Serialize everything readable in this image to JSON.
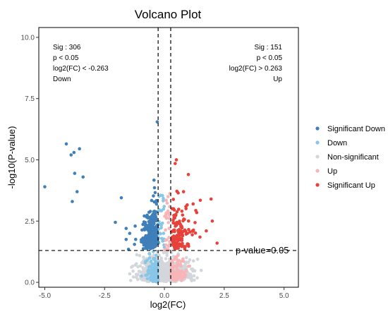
{
  "chart_data": {
    "type": "scatter",
    "title": "Volcano Plot",
    "xlabel": "log2(FC)",
    "ylabel": "-log10(P-value)",
    "xlim": [
      -5.25,
      5.6
    ],
    "ylim": [
      -0.2,
      10.4
    ],
    "x_ticks": [
      "-5.0",
      "-2.5",
      "0.0",
      "2.5",
      "5.0"
    ],
    "x_tick_values": [
      -5.0,
      -2.5,
      0.0,
      2.5,
      5.0
    ],
    "y_ticks": [
      "0.0",
      "2.5",
      "5.0",
      "7.5",
      "10.0"
    ],
    "y_tick_values": [
      0.0,
      2.5,
      5.0,
      7.5,
      10.0
    ],
    "fc_threshold_left": -0.263,
    "fc_threshold_right": 0.263,
    "pvalue_line": 1.3,
    "pvalue_line_label": "p-value=0.05",
    "annotations": {
      "left": [
        "Sig : 306",
        "p < 0.05",
        "log2(FC) < -0.263",
        "Down"
      ],
      "right": [
        "Sig : 151",
        "p < 0.05",
        "log2(FC) > 0.263",
        "Up"
      ]
    },
    "legend_position": "right",
    "series": [
      {
        "name": "Significant Down",
        "color": "#3f7fba",
        "count": 306,
        "points": [
          [
            -5.0,
            3.9
          ],
          [
            -4.1,
            5.65
          ],
          [
            -3.9,
            5.2
          ],
          [
            -3.78,
            5.3
          ],
          [
            -3.55,
            5.45
          ],
          [
            -3.75,
            4.45
          ],
          [
            -3.4,
            4.3
          ],
          [
            -3.65,
            3.7
          ],
          [
            -3.85,
            3.3
          ],
          [
            -1.8,
            3.45
          ],
          [
            -2.05,
            2.45
          ],
          [
            -1.6,
            2.2
          ],
          [
            -1.45,
            2.0
          ],
          [
            -1.6,
            1.75
          ],
          [
            -0.3,
            6.55
          ],
          [
            -1.5,
            1.35
          ],
          [
            -1.25,
            1.55
          ]
        ]
      },
      {
        "name": "Down",
        "color": "#88c6e8",
        "count": 120
      },
      {
        "name": "Non-significant",
        "color": "#d3d7db",
        "count": 600
      },
      {
        "name": "Up",
        "color": "#f8b5b7",
        "count": 90
      },
      {
        "name": "Significant Up",
        "color": "#e8413a",
        "count": 151,
        "points": [
          [
            0.45,
            4.85
          ],
          [
            0.5,
            5.0
          ],
          [
            1.0,
            4.4
          ],
          [
            1.5,
            3.35
          ],
          [
            1.95,
            3.4
          ],
          [
            2.0,
            2.5
          ],
          [
            2.2,
            1.6
          ],
          [
            1.75,
            2.1
          ],
          [
            1.2,
            3.2
          ],
          [
            0.8,
            3.7
          ]
        ]
      }
    ]
  }
}
